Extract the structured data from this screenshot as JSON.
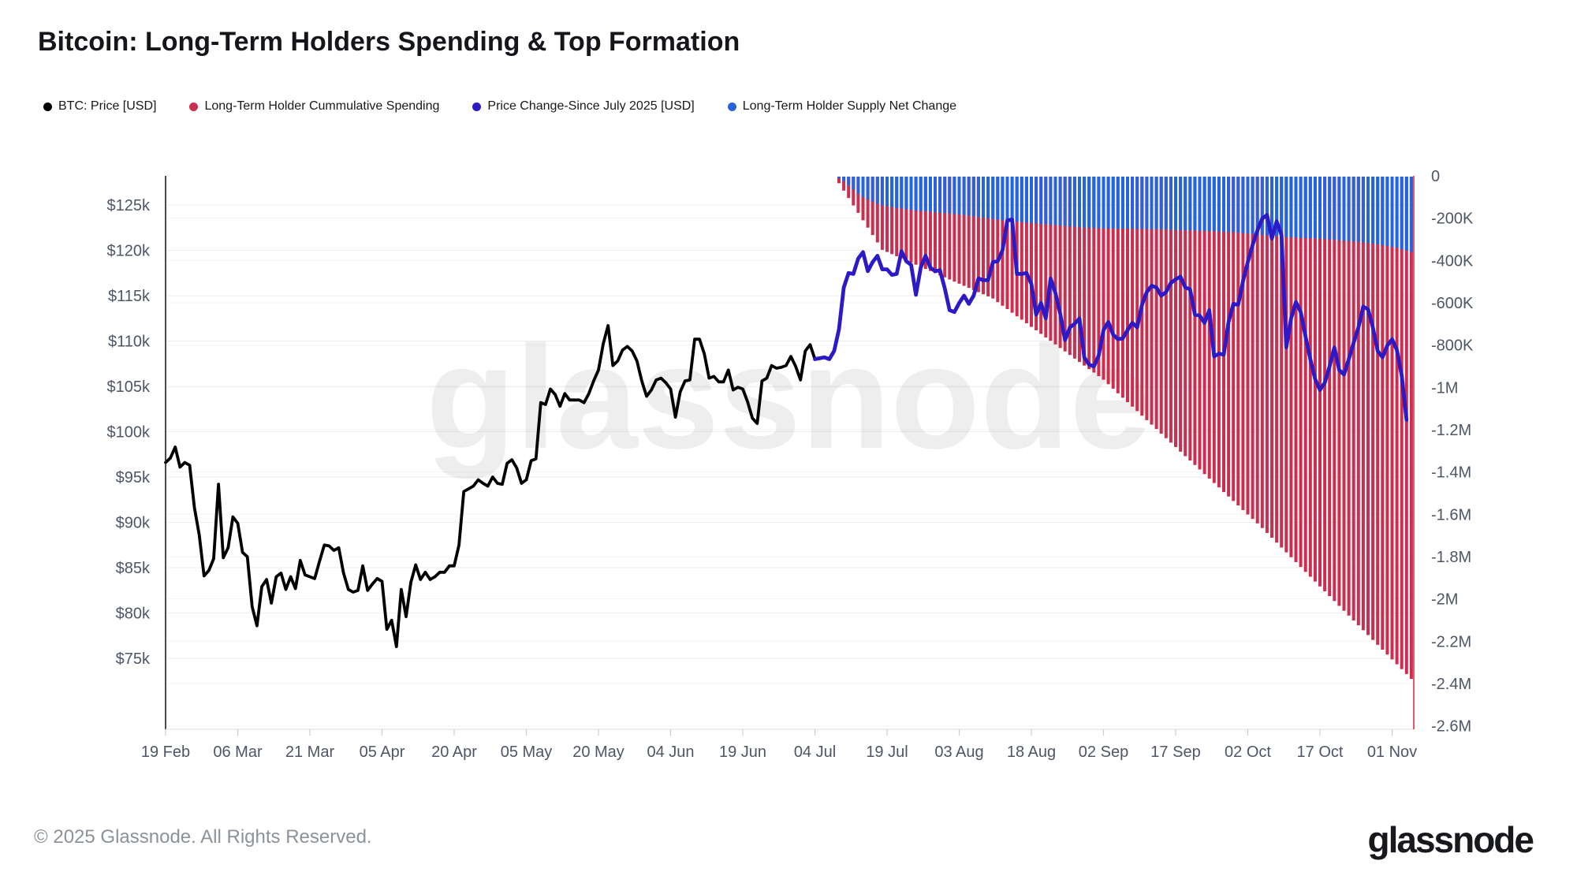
{
  "title": "Bitcoin: Long-Term Holders Spending & Top Formation",
  "watermark": "glassnode",
  "legend": {
    "items": [
      {
        "label": "BTC: Price [USD]",
        "color": "#000000"
      },
      {
        "label": "Long-Term Holder Cummulative Spending",
        "color": "#cb2e4e"
      },
      {
        "label": "Price Change-Since July 2025 [USD]",
        "color": "#2b1ac6"
      },
      {
        "label": "Long-Term Holder Supply Net Change",
        "color": "#2563e0"
      }
    ]
  },
  "footer": {
    "copyright": "© 2025 Glassnode. All Rights Reserved.",
    "brand": "glassnode"
  },
  "chart_data": {
    "type": "mixed-line-bar",
    "grid": true,
    "x_axis": {
      "unit": "date-2025",
      "tick_labels": [
        "19 Feb",
        "06 Mar",
        "21 Mar",
        "05 Apr",
        "20 Apr",
        "05 May",
        "20 May",
        "04 Jun",
        "19 Jun",
        "04 Jul",
        "19 Jul",
        "03 Aug",
        "18 Aug",
        "02 Sep",
        "17 Sep",
        "02 Oct",
        "17 Oct",
        "01 Nov"
      ],
      "tick_days": [
        0,
        15,
        30,
        45,
        60,
        75,
        90,
        105,
        120,
        135,
        150,
        165,
        180,
        195,
        210,
        225,
        240,
        255
      ]
    },
    "left_axis": {
      "unit": "USD",
      "tick_labels": [
        "$125k",
        "$120k",
        "$115k",
        "$110k",
        "$105k",
        "$100k",
        "$95k",
        "$90k",
        "$85k",
        "$80k",
        "$75k"
      ],
      "tick_values_usd_k": [
        125,
        120,
        115,
        110,
        105,
        100,
        95,
        90,
        85,
        80,
        75
      ]
    },
    "right_axis": {
      "unit": "BTC",
      "tick_labels": [
        "0",
        "-200K",
        "-400K",
        "-600K",
        "-800K",
        "-1M",
        "-1.2M",
        "-1.4M",
        "-1.6M",
        "-1.8M",
        "-2M",
        "-2.2M",
        "-2.4M",
        "-2.6M"
      ],
      "tick_values_k_btc": [
        0,
        -200,
        -400,
        -600,
        -800,
        -1000,
        -1200,
        -1400,
        -1600,
        -1800,
        -2000,
        -2200,
        -2400,
        -2600
      ]
    },
    "right_edge_marker_color": "#e4596f",
    "series": [
      {
        "name": "BTC: Price [USD]",
        "type": "line",
        "color": "#000000",
        "start_day": 0,
        "unit": "USD_k",
        "values": [
          96.6,
          97.1,
          98.3,
          96.1,
          96.6,
          96.3,
          91.6,
          88.6,
          84.1,
          84.7,
          86.0,
          94.2,
          86.1,
          87.2,
          90.6,
          89.9,
          86.7,
          86.2,
          80.7,
          78.6,
          82.9,
          83.7,
          81.1,
          84.0,
          84.4,
          82.6,
          84.0,
          82.7,
          85.8,
          84.2,
          84.0,
          83.8,
          85.7,
          87.5,
          87.4,
          86.9,
          87.2,
          84.4,
          82.6,
          82.3,
          82.5,
          85.2,
          82.5,
          83.2,
          83.8,
          83.5,
          78.2,
          79.2,
          76.3,
          82.6,
          79.6,
          83.4,
          85.3,
          83.7,
          84.5,
          83.7,
          84.0,
          84.5,
          84.5,
          85.2,
          85.2,
          87.5,
          93.4,
          93.7,
          94.0,
          94.7,
          94.3,
          94.0,
          95.0,
          94.3,
          94.2,
          96.5,
          96.9,
          96.0,
          94.3,
          94.7,
          96.8,
          97.0,
          103.2,
          103.0,
          104.7,
          104.1,
          102.8,
          104.2,
          103.5,
          103.5,
          103.5,
          103.2,
          104.2,
          105.6,
          106.8,
          109.7,
          111.7,
          107.3,
          107.8,
          109.0,
          109.4,
          108.9,
          107.8,
          105.6,
          103.9,
          104.6,
          105.7,
          105.9,
          105.4,
          104.7,
          101.6,
          104.4,
          105.6,
          105.7,
          110.2,
          110.2,
          108.6,
          105.9,
          106.1,
          105.5,
          105.5,
          106.8,
          104.6,
          104.9,
          104.7,
          103.3,
          101.5,
          100.9,
          105.6,
          105.9,
          107.3,
          107.0,
          107.1,
          107.3,
          108.3,
          107.2,
          105.7,
          108.9,
          109.6,
          108.0,
          108.1,
          108.2,
          108.0,
          108.9
        ]
      },
      {
        "name": "Price Change-Since July 2025 [USD]",
        "type": "line",
        "color": "#2b1ac6",
        "start_day": 135,
        "unit": "USD_k",
        "values": [
          108.0,
          108.1,
          108.2,
          108.0,
          108.9,
          111.3,
          115.9,
          117.5,
          117.4,
          119.1,
          119.8,
          117.7,
          118.7,
          119.4,
          117.9,
          117.9,
          117.3,
          117.4,
          119.9,
          118.8,
          118.4,
          115.1,
          118.1,
          119.4,
          118.1,
          117.7,
          117.8,
          115.8,
          113.4,
          113.2,
          114.2,
          115.0,
          114.1,
          115.0,
          116.9,
          116.7,
          116.7,
          118.7,
          118.8,
          120.0,
          123.3,
          123.4,
          117.4,
          117.4,
          117.5,
          116.3,
          112.9,
          114.2,
          112.5,
          116.9,
          115.3,
          113.0,
          110.1,
          111.5,
          111.9,
          112.5,
          108.2,
          107.4,
          107.2,
          108.4,
          111.2,
          112.1,
          110.7,
          110.2,
          110.3,
          111.2,
          112.0,
          111.5,
          114.0,
          115.4,
          116.1,
          115.9,
          115.0,
          115.4,
          116.4,
          116.8,
          117.1,
          115.9,
          115.7,
          112.9,
          112.8,
          112.0,
          113.4,
          108.3,
          108.6,
          108.5,
          112.1,
          114.1,
          114.0,
          116.6,
          118.7,
          120.6,
          122.2,
          123.5,
          123.9,
          121.3,
          123.2,
          121.7,
          109.3,
          112.5,
          114.3,
          113.2,
          110.5,
          108.0,
          105.8,
          104.6,
          105.4,
          107.2,
          109.3,
          106.8,
          106.3,
          108.0,
          109.8,
          111.5,
          113.8,
          113.5,
          111.5,
          108.9,
          108.2,
          109.5,
          110.2,
          109.0,
          106.2,
          101.3
        ]
      },
      {
        "name": "Long-Term Holder Cummulative Spending",
        "type": "bar",
        "color": "#cb2e4e",
        "start_day": 140,
        "unit": "BTC_k",
        "values": [
          -35,
          -70,
          -105,
          -140,
          -175,
          -210,
          -245,
          -280,
          -315,
          -350,
          -360,
          -370,
          -380,
          -390,
          -400,
          -410,
          -420,
          -430,
          -440,
          -450,
          -460,
          -470,
          -480,
          -490,
          -500,
          -510,
          -520,
          -530,
          -540,
          -550,
          -560,
          -570,
          -580,
          -597,
          -614,
          -630,
          -647,
          -664,
          -680,
          -697,
          -714,
          -730,
          -747,
          -764,
          -780,
          -797,
          -814,
          -830,
          -847,
          -864,
          -880,
          -897,
          -914,
          -930,
          -947,
          -964,
          -985,
          -1006,
          -1028,
          -1049,
          -1070,
          -1091,
          -1112,
          -1134,
          -1155,
          -1176,
          -1197,
          -1219,
          -1240,
          -1261,
          -1282,
          -1304,
          -1325,
          -1346,
          -1367,
          -1388,
          -1410,
          -1431,
          -1452,
          -1473,
          -1495,
          -1516,
          -1537,
          -1558,
          -1580,
          -1601,
          -1622,
          -1643,
          -1665,
          -1688,
          -1711,
          -1734,
          -1757,
          -1780,
          -1803,
          -1826,
          -1849,
          -1872,
          -1895,
          -1918,
          -1941,
          -1964,
          -1987,
          -2010,
          -2033,
          -2056,
          -2079,
          -2102,
          -2125,
          -2148,
          -2171,
          -2194,
          -2217,
          -2240,
          -2263,
          -2286,
          -2309,
          -2332,
          -2355,
          -2378
        ]
      },
      {
        "name": "Long-Term Holder Supply Net Change",
        "type": "bar",
        "color": "#2563e0",
        "start_day": 140,
        "unit": "BTC_k",
        "values": [
          -8,
          -25,
          -45,
          -65,
          -85,
          -100,
          -112,
          -122,
          -132,
          -140,
          -144,
          -148,
          -152,
          -155,
          -158,
          -161,
          -164,
          -166,
          -168,
          -170,
          -172,
          -174,
          -176,
          -178,
          -180,
          -183,
          -186,
          -189,
          -192,
          -195,
          -198,
          -201,
          -204,
          -207,
          -210,
          -213,
          -215,
          -217,
          -219,
          -221,
          -223,
          -225,
          -227,
          -229,
          -231,
          -233,
          -235,
          -237,
          -239,
          -241,
          -243,
          -245,
          -246,
          -247,
          -248,
          -249,
          -249,
          -250,
          -250,
          -250,
          -250,
          -250,
          -251,
          -251,
          -252,
          -252,
          -253,
          -253,
          -254,
          -255,
          -256,
          -257,
          -258,
          -258,
          -259,
          -260,
          -260,
          -261,
          -262,
          -263,
          -264,
          -265,
          -267,
          -269,
          -271,
          -273,
          -275,
          -277,
          -280,
          -282,
          -284,
          -286,
          -288,
          -290,
          -291,
          -292,
          -293,
          -294,
          -295,
          -296,
          -297,
          -299,
          -301,
          -303,
          -305,
          -307,
          -309,
          -311,
          -313,
          -315,
          -318,
          -321,
          -324,
          -328,
          -332,
          -336,
          -340,
          -346,
          -353,
          -360
        ]
      }
    ]
  }
}
